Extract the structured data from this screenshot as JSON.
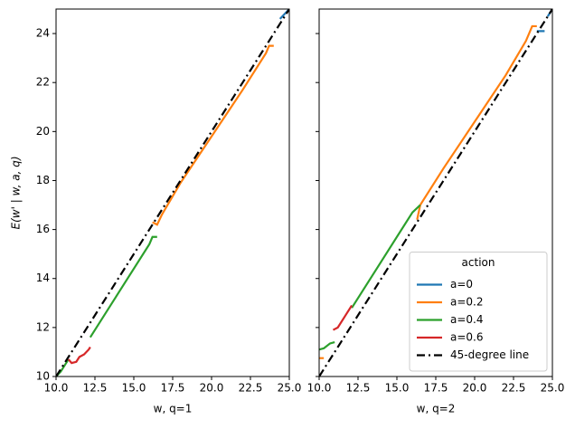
{
  "chart_data": [
    {
      "type": "line",
      "xlabel": "w, q=1",
      "ylabel": "E(w' | w, a, q)",
      "xlim": [
        10,
        25
      ],
      "ylim": [
        10,
        25
      ],
      "xticks": [
        {
          "value": 10,
          "label": "10.0"
        },
        {
          "value": 12.5,
          "label": "12.5"
        },
        {
          "value": 15,
          "label": "15.0"
        },
        {
          "value": 17.5,
          "label": "17.5"
        },
        {
          "value": 20,
          "label": "20.0"
        },
        {
          "value": 22.5,
          "label": "22.5"
        },
        {
          "value": 25,
          "label": "25.0"
        }
      ],
      "yticks": [
        10,
        12,
        14,
        16,
        18,
        20,
        22,
        24
      ],
      "ytick_labels": true,
      "legend": false,
      "series": [
        {
          "color": "#1f77b4",
          "style": "solid",
          "x": [
            24.4,
            25
          ],
          "values": [
            24.6,
            25
          ]
        },
        {
          "color": "#ff7f0e",
          "style": "solid",
          "x": [
            16.2,
            16.5,
            16.8,
            18,
            20,
            22,
            23.5,
            23.7,
            24
          ],
          "values": [
            16.3,
            16.2,
            16.6,
            17.9,
            19.8,
            21.7,
            23.2,
            23.5,
            23.5
          ]
        },
        {
          "color": "#2ca02c",
          "style": "solid",
          "x": [
            10,
            10.3,
            10.6,
            10.8,
            null,
            12.2,
            14,
            16,
            16.2,
            16.5
          ],
          "values": [
            10,
            10.2,
            10.5,
            10.7,
            null,
            11.6,
            13.4,
            15.4,
            15.7,
            15.7
          ]
        },
        {
          "color": "#d62728",
          "style": "solid",
          "x": [
            10.8,
            11,
            11.3,
            11.5,
            11.8,
            12.1,
            12.2
          ],
          "values": [
            10.7,
            10.55,
            10.6,
            10.8,
            10.9,
            11.1,
            11.2
          ]
        },
        {
          "color": "#000000",
          "style": "dashdot",
          "x": [
            10,
            25
          ],
          "values": [
            10,
            25
          ]
        }
      ]
    },
    {
      "type": "line",
      "xlabel": "w, q=2",
      "xlim": [
        10,
        25
      ],
      "ylim": [
        10,
        25
      ],
      "xticks": [
        {
          "value": 10,
          "label": "10.0"
        },
        {
          "value": 12.5,
          "label": "12.5"
        },
        {
          "value": 15,
          "label": "15.0"
        },
        {
          "value": 17.5,
          "label": "17.5"
        },
        {
          "value": 20,
          "label": "20.0"
        },
        {
          "value": 22.5,
          "label": "22.5"
        },
        {
          "value": 25,
          "label": "25.0"
        }
      ],
      "yticks": [
        10,
        12,
        14,
        16,
        18,
        20,
        22,
        24
      ],
      "ytick_labels": false,
      "legend": {
        "title": "action",
        "position": "lower right"
      },
      "series": [
        {
          "name": "a=0",
          "color": "#1f77b4",
          "style": "solid",
          "x": [
            24,
            24.5,
            null,
            24.7,
            25
          ],
          "values": [
            24.1,
            24.1,
            null,
            24.7,
            25
          ]
        },
        {
          "name": "a=0.2",
          "color": "#ff7f0e",
          "style": "solid",
          "x": [
            10,
            10.3,
            null,
            16.3,
            16.5,
            18,
            20,
            22,
            23.3,
            23.7,
            24
          ],
          "values": [
            10.75,
            10.75,
            null,
            16.4,
            17,
            18.5,
            20.4,
            22.3,
            23.7,
            24.3,
            24.3
          ]
        },
        {
          "name": "a=0.4",
          "color": "#2ca02c",
          "style": "solid",
          "x": [
            10,
            10.3,
            10.7,
            11,
            null,
            12.1,
            14,
            16,
            16.5
          ],
          "values": [
            11.1,
            11.15,
            11.35,
            11.4,
            null,
            12.8,
            14.7,
            16.7,
            17
          ]
        },
        {
          "name": "a=0.6",
          "color": "#d62728",
          "style": "solid",
          "x": [
            10.9,
            11.2,
            11.7,
            12.1
          ],
          "values": [
            11.9,
            12,
            12.5,
            12.9
          ]
        },
        {
          "name": "45-degree line",
          "color": "#000000",
          "style": "dashdot",
          "x": [
            10,
            25
          ],
          "values": [
            10,
            25
          ]
        }
      ]
    }
  ]
}
